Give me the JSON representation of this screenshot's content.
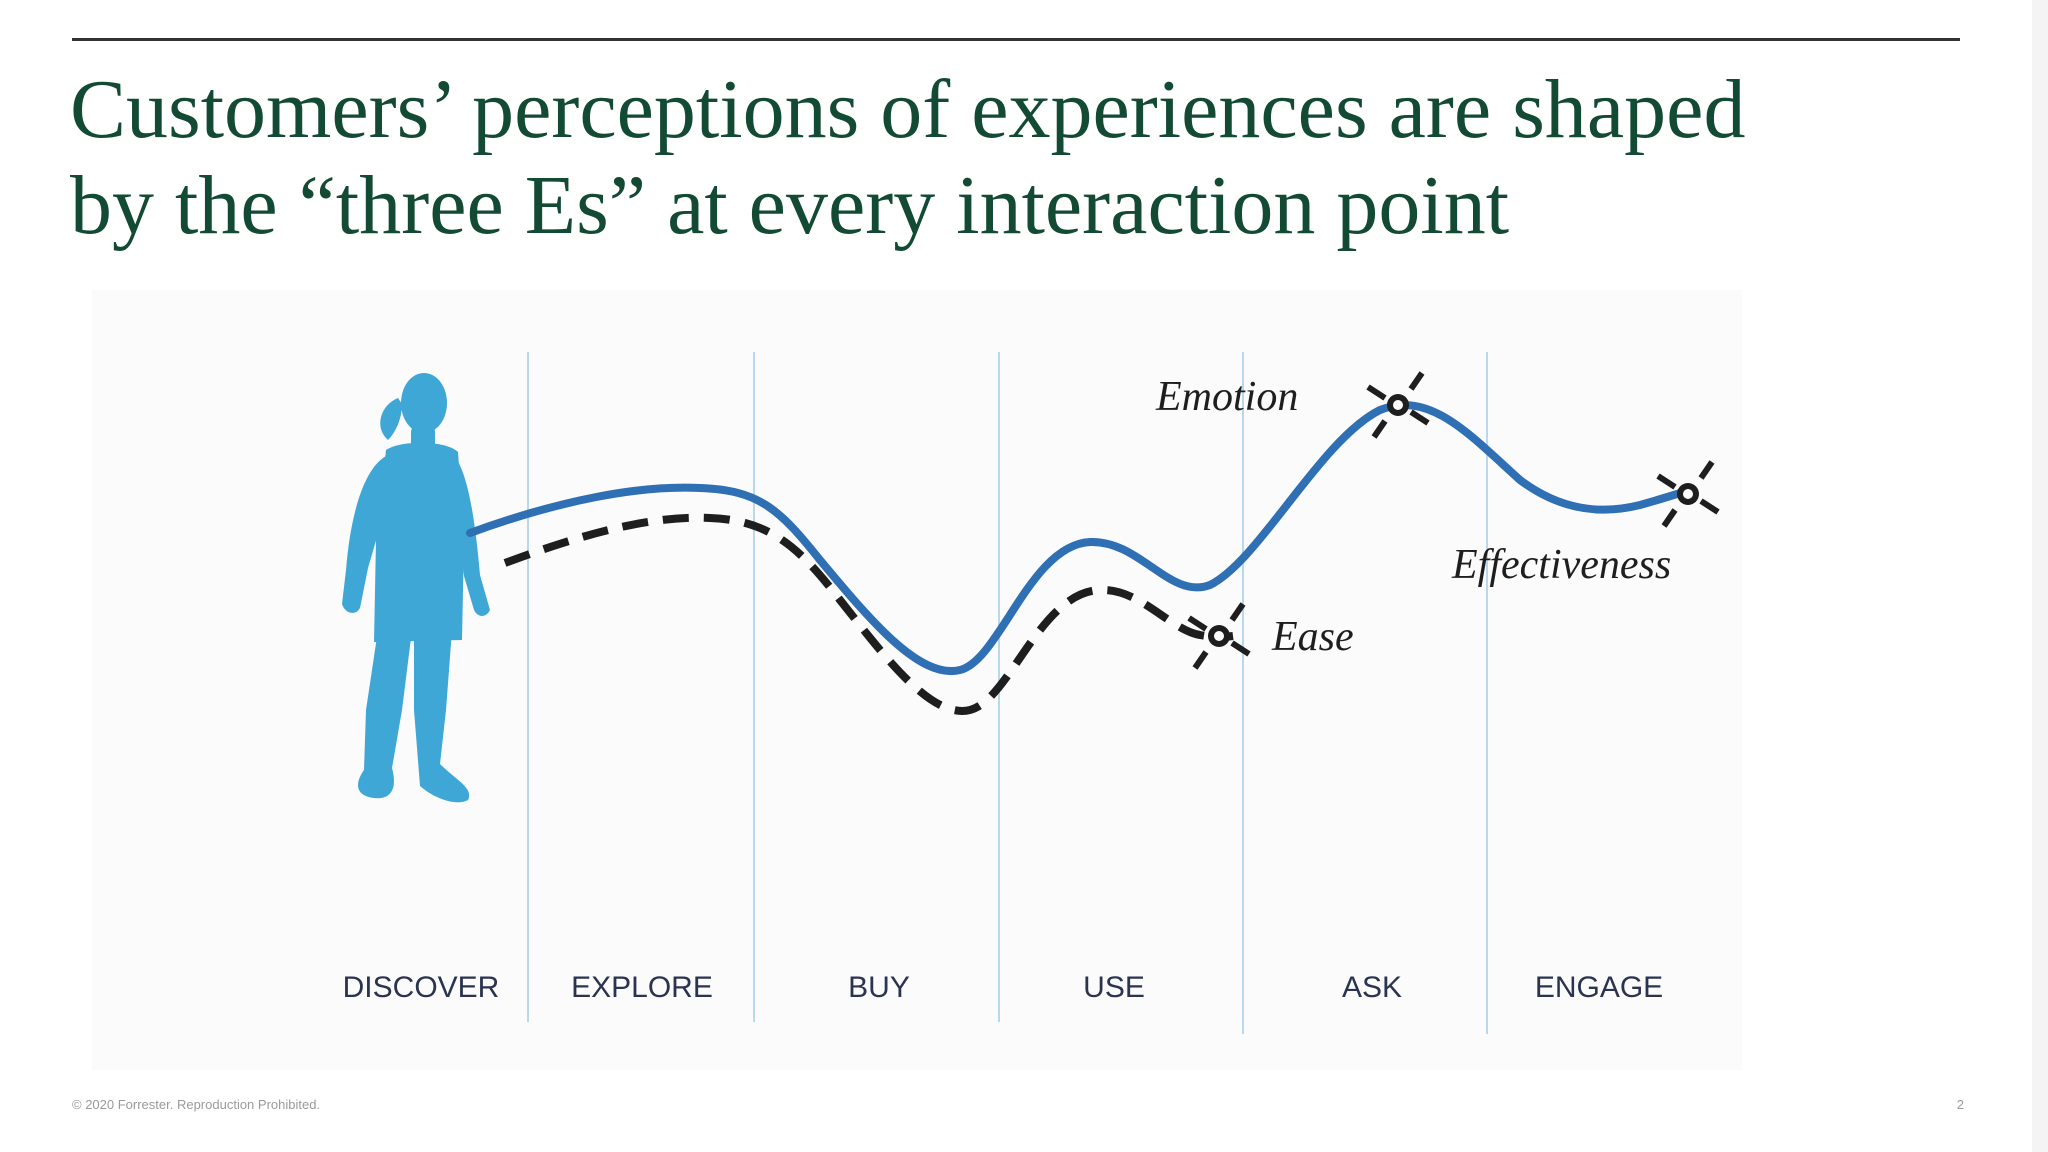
{
  "slide": {
    "title_line1": "Customers’ perceptions of experiences are shaped",
    "title_line2": "by the “three Es” at every interaction point",
    "footer": "© 2020 Forrester. Reproduction Prohibited.",
    "page_number": "2"
  },
  "diagram": {
    "stages": [
      "DISCOVER",
      "EXPLORE",
      "BUY",
      "USE",
      "ASK",
      "ENGAGE"
    ],
    "labels": {
      "emotion": "Emotion",
      "ease": "Ease",
      "effectiveness": "Effectiveness"
    },
    "icons": {
      "customer": "person-silhouette-icon",
      "marker": "crosshair-marker-icon"
    }
  },
  "colors": {
    "title": "#134a34",
    "emotion_curve": "#2f6fb4",
    "ease_curve": "#1e1e1e",
    "customer": "#3fa7d6",
    "stage_divider": "#b9d8ec",
    "stage_label": "#2a3350"
  }
}
